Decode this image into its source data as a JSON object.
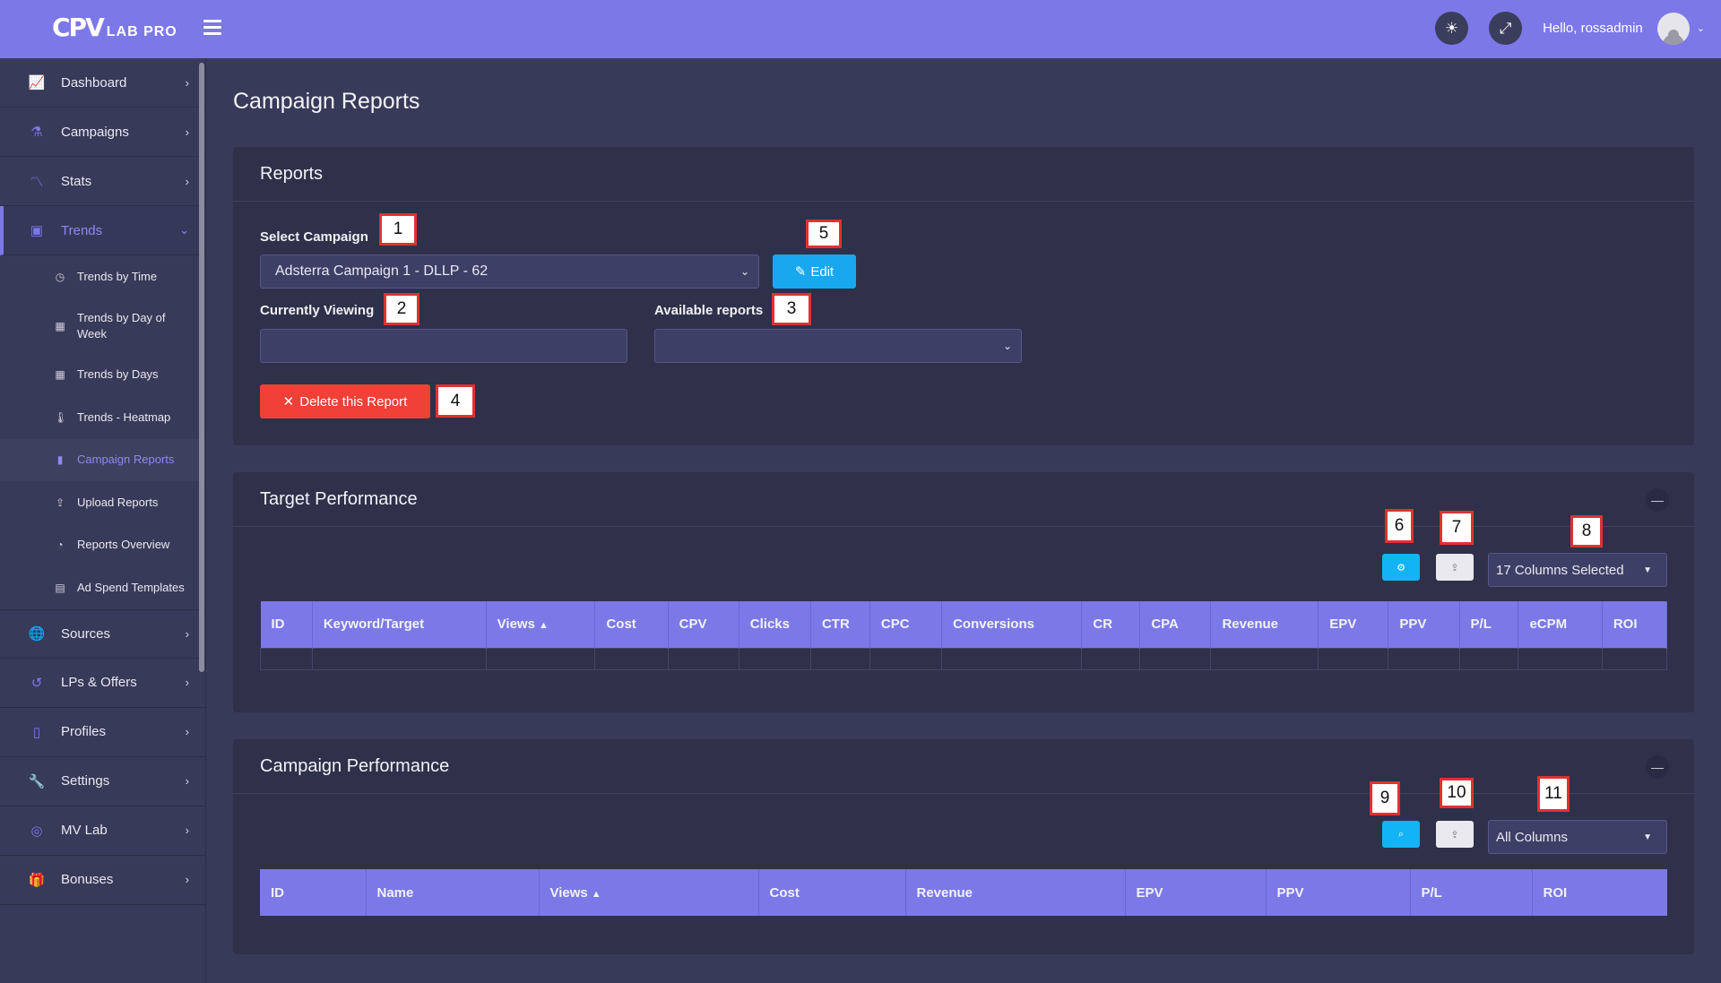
{
  "header": {
    "logo_mark": "CPV",
    "logo_text": "LAB PRO",
    "greeting": "Hello, rossadmin"
  },
  "sidebar": {
    "items": [
      {
        "label": "Dashboard",
        "icon": "chart-line-icon"
      },
      {
        "label": "Campaigns",
        "icon": "flask-icon"
      },
      {
        "label": "Stats",
        "icon": "stats-icon"
      },
      {
        "label": "Trends",
        "icon": "briefcase-icon",
        "active": true
      },
      {
        "label": "Sources",
        "icon": "globe-icon"
      },
      {
        "label": "LPs & Offers",
        "icon": "refresh-icon"
      },
      {
        "label": "Profiles",
        "icon": "clipboard-icon"
      },
      {
        "label": "Settings",
        "icon": "wrench-icon"
      },
      {
        "label": "MV Lab",
        "icon": "target-icon"
      },
      {
        "label": "Bonuses",
        "icon": "gift-icon"
      }
    ],
    "trends_sub": [
      {
        "label": "Trends by Time",
        "icon": "clock-icon"
      },
      {
        "label": "Trends by Day of Week",
        "icon": "calendar-icon"
      },
      {
        "label": "Trends by Days",
        "icon": "calendar-grid-icon"
      },
      {
        "label": "Trends - Heatmap",
        "icon": "thermometer-icon"
      },
      {
        "label": "Campaign Reports",
        "icon": "bar-chart-icon",
        "current": true
      },
      {
        "label": "Upload Reports",
        "icon": "upload-icon"
      },
      {
        "label": "Reports Overview",
        "icon": "pie-icon"
      },
      {
        "label": "Ad Spend Templates",
        "icon": "file-icon"
      }
    ]
  },
  "page": {
    "title": "Campaign Reports"
  },
  "reports": {
    "title": "Reports",
    "select_campaign_label": "Select Campaign",
    "campaign_value": "Adsterra Campaign 1  -  DLLP  -  62",
    "edit_label": "Edit",
    "currently_viewing_label": "Currently Viewing",
    "currently_viewing_value": "",
    "available_reports_label": "Available reports",
    "available_reports_value": "",
    "delete_label": "Delete this Report"
  },
  "target_performance": {
    "title": "Target Performance",
    "columns_selected": "17 Columns Selected",
    "headers": [
      "ID",
      "Keyword/Target",
      "Views",
      "Cost",
      "CPV",
      "Clicks",
      "CTR",
      "CPC",
      "Conversions",
      "CR",
      "CPA",
      "Revenue",
      "EPV",
      "PPV",
      "P/L",
      "eCPM",
      "ROI"
    ]
  },
  "campaign_performance": {
    "title": "Campaign Performance",
    "columns_selected": "All Columns",
    "headers": [
      "ID",
      "Name",
      "Views",
      "Cost",
      "Revenue",
      "EPV",
      "PPV",
      "P/L",
      "ROI"
    ]
  },
  "annotations": [
    "1",
    "2",
    "3",
    "4",
    "5",
    "6",
    "7",
    "8",
    "9",
    "10",
    "11"
  ]
}
